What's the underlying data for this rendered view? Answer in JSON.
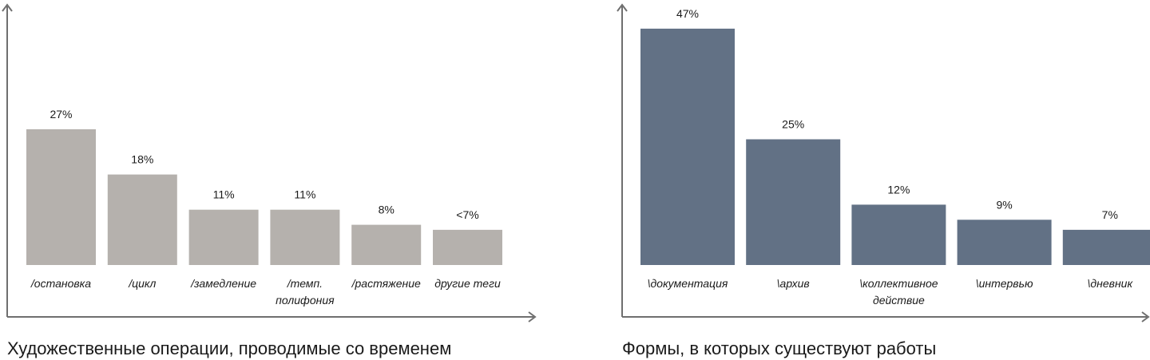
{
  "chart_data": [
    {
      "type": "bar",
      "title": "Художественные операции, проводимые со временем",
      "categories": [
        "/остановка",
        "/цикл",
        "/замедление",
        "/темп. полифония",
        "/растяжение",
        "другие теги"
      ],
      "category_lines": [
        [
          "/остановка"
        ],
        [
          "/цикл"
        ],
        [
          "/замедление"
        ],
        [
          "/темп.",
          "полифония"
        ],
        [
          "/растяжение"
        ],
        [
          "другие теги"
        ]
      ],
      "values": [
        27,
        18,
        11,
        11,
        8,
        7
      ],
      "value_labels": [
        "27%",
        "18%",
        "11%",
        "11%",
        "8%",
        "<7%"
      ],
      "unit": "%",
      "ylim": [
        0,
        50
      ],
      "grid": false,
      "legend": "none",
      "bar_color": "#b5b1ad"
    },
    {
      "type": "bar",
      "title": "Формы, в которых существуют работы",
      "categories": [
        "\\документация",
        "\\архив",
        "\\коллективное действие",
        "\\интервью",
        "\\дневник"
      ],
      "category_lines": [
        [
          "\\документация"
        ],
        [
          "\\архив"
        ],
        [
          "\\коллективное",
          "действие"
        ],
        [
          "\\интервью"
        ],
        [
          "\\дневник"
        ]
      ],
      "values": [
        47,
        25,
        12,
        9,
        7
      ],
      "value_labels": [
        "47%",
        "25%",
        "12%",
        "9%",
        "7%"
      ],
      "unit": "%",
      "ylim": [
        0,
        50
      ],
      "grid": false,
      "legend": "none",
      "bar_color": "#627185"
    }
  ],
  "axis_color": "#6f6f6f"
}
